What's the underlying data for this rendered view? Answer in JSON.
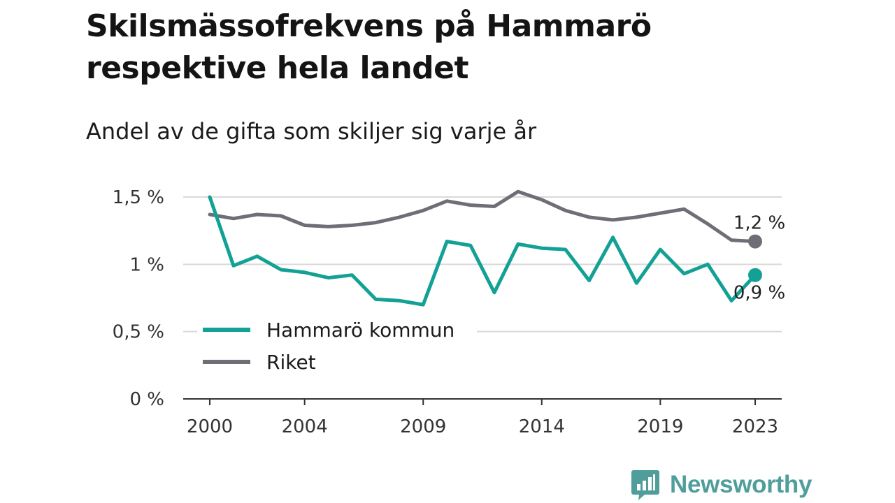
{
  "title": "Skilsmässofrekvens på Hammarö respektive hela landet",
  "subtitle": "Andel av de gifta som skiljer sig varje år",
  "brand": {
    "name": "Newsworthy",
    "icon": "newsworthy-logo-icon"
  },
  "colors": {
    "hammaro": "#13a195",
    "riket": "#6f6e76",
    "grid": "#d9d9d9",
    "axis": "#333333",
    "brand": "#4f9e9b"
  },
  "chart_data": {
    "type": "line",
    "title": "Skilsmässofrekvens på Hammarö respektive hela landet",
    "subtitle": "Andel av de gifta som skiljer sig varje år",
    "xlabel": "",
    "ylabel": "",
    "x": [
      2000,
      2001,
      2002,
      2003,
      2004,
      2005,
      2006,
      2007,
      2008,
      2009,
      2010,
      2011,
      2012,
      2013,
      2014,
      2015,
      2016,
      2017,
      2018,
      2019,
      2020,
      2021,
      2022,
      2023
    ],
    "xticks": [
      2000,
      2004,
      2009,
      2014,
      2019,
      2023
    ],
    "xtick_labels": [
      "2000",
      "2004",
      "2009",
      "2014",
      "2019",
      "2023"
    ],
    "xlim": [
      2000,
      2023
    ],
    "yticks": [
      0,
      0.5,
      1,
      1.5
    ],
    "ytick_labels": [
      "0 %",
      "0,5 %",
      "1 %",
      "1,5 %"
    ],
    "ylim": [
      0,
      1.5
    ],
    "grid": true,
    "legend_position": "bottom-left",
    "series": [
      {
        "name": "Hammarö kommun",
        "values": [
          1.5,
          0.99,
          1.06,
          0.96,
          0.94,
          0.9,
          0.92,
          0.74,
          0.73,
          0.7,
          1.17,
          1.14,
          0.79,
          1.15,
          1.12,
          1.11,
          0.88,
          1.2,
          0.86,
          1.11,
          0.93,
          1.0,
          0.73,
          0.92
        ],
        "end_label": "0,9 %"
      },
      {
        "name": "Riket",
        "values": [
          1.37,
          1.34,
          1.37,
          1.36,
          1.29,
          1.28,
          1.29,
          1.31,
          1.35,
          1.4,
          1.47,
          1.44,
          1.43,
          1.54,
          1.48,
          1.4,
          1.35,
          1.33,
          1.35,
          1.38,
          1.41,
          1.3,
          1.18,
          1.17
        ],
        "end_label": "1,2 %"
      }
    ]
  }
}
